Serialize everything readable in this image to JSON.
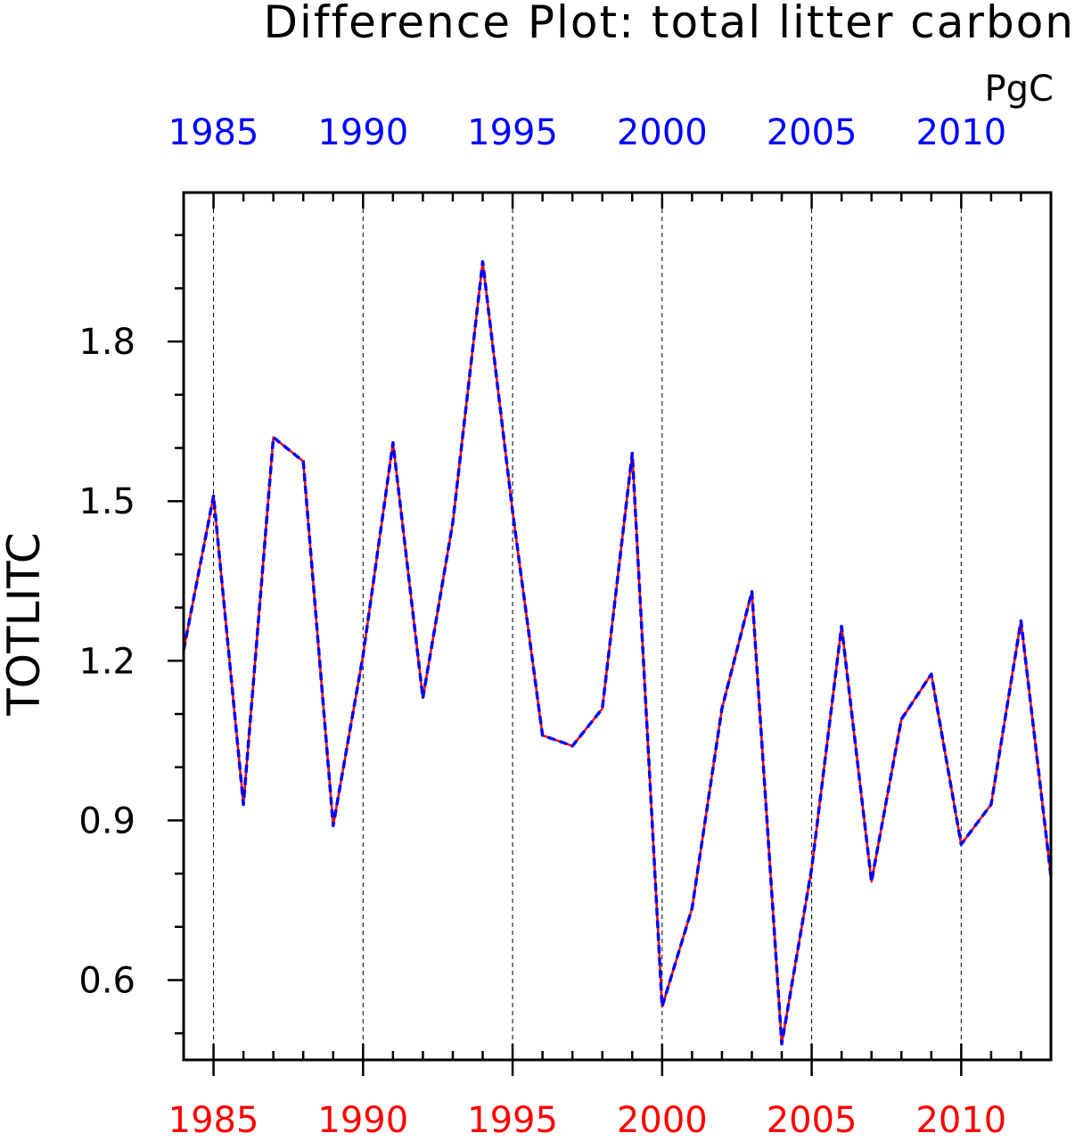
{
  "chart_data": {
    "type": "line",
    "title": "Difference Plot: total litter carbon",
    "units": "PgC",
    "ylabel": "TOTLITC",
    "xlabel": "",
    "xlim": [
      1984,
      2013
    ],
    "ylim": [
      0.45,
      2.08
    ],
    "x_ticks_labeled": [
      1985,
      1990,
      1995,
      2000,
      2005,
      2010
    ],
    "x_tick_labels": [
      "1985",
      "1990",
      "1995",
      "2000",
      "2005",
      "2010"
    ],
    "y_ticks_labeled": [
      0.6,
      0.9,
      1.2,
      1.5,
      1.8
    ],
    "y_tick_labels": [
      "0.6",
      "0.9",
      "1.2",
      "1.5",
      "1.8"
    ],
    "y_minor_step": 0.1,
    "grid": "vertical dashed at labeled years",
    "top_axis_color": "#0000ff",
    "bottom_axis_color": "#ff0000",
    "x": [
      1984,
      1985,
      1986,
      1987,
      1988,
      1989,
      1990,
      1991,
      1992,
      1993,
      1994,
      1995,
      1996,
      1997,
      1998,
      1999,
      2000,
      2001,
      2002,
      2003,
      2004,
      2005,
      2006,
      2007,
      2008,
      2009,
      2010,
      2011,
      2012,
      2013
    ],
    "series": [
      {
        "color": "#ff0000",
        "style": "solid",
        "values": [
          1.22,
          1.51,
          0.93,
          1.62,
          1.575,
          0.89,
          1.21,
          1.61,
          1.13,
          1.46,
          1.95,
          1.48,
          1.06,
          1.04,
          1.11,
          1.59,
          0.55,
          0.735,
          1.11,
          1.33,
          0.48,
          0.81,
          1.265,
          0.785,
          1.09,
          1.175,
          0.855,
          0.93,
          1.275,
          0.795
        ]
      },
      {
        "color": "#0000ff",
        "style": "dashed",
        "values": [
          1.22,
          1.51,
          0.93,
          1.62,
          1.575,
          0.89,
          1.21,
          1.61,
          1.13,
          1.46,
          1.95,
          1.48,
          1.06,
          1.04,
          1.11,
          1.59,
          0.55,
          0.735,
          1.11,
          1.33,
          0.48,
          0.81,
          1.265,
          0.785,
          1.09,
          1.175,
          0.855,
          0.93,
          1.275,
          0.795
        ]
      }
    ]
  }
}
